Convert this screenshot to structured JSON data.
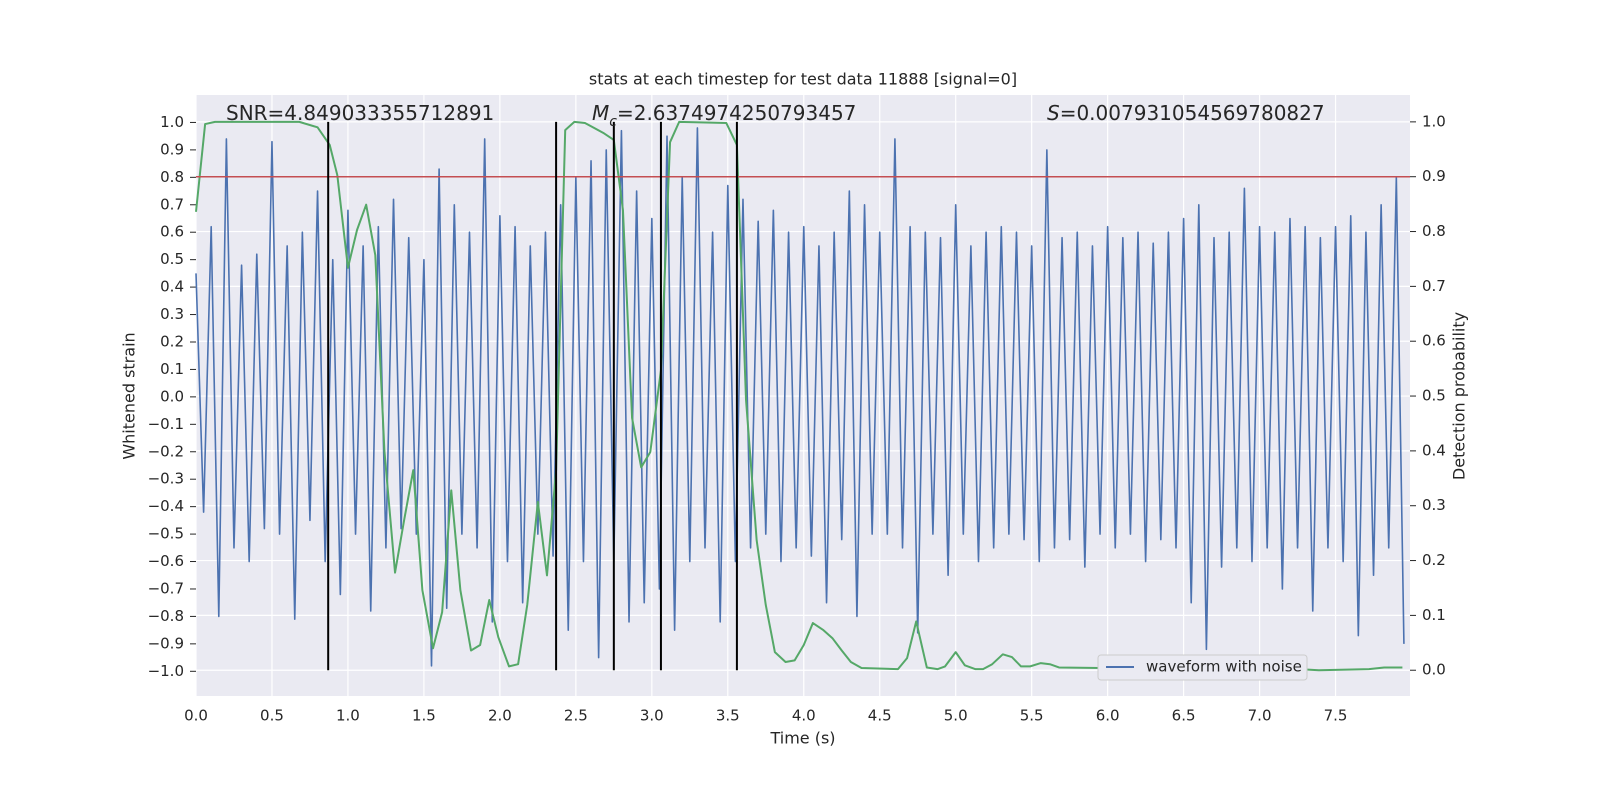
{
  "chart_data": {
    "type": "line",
    "title": "stats at each timestep for test data 11888 [signal=0]",
    "xlabel": "Time (s)",
    "ylabel": "Whitened strain",
    "y2label": "Detection probability",
    "annotations": [
      {
        "text": "SNR=4.849033355712891"
      },
      {
        "symbol": "M",
        "sub": "c",
        "text": "=2.6374974250793457"
      },
      {
        "symbol": "S",
        "text": "=0.007931054569780827"
      }
    ],
    "xlim": [
      0,
      7.99
    ],
    "ylim": [
      -1.09,
      1.1
    ],
    "y2lim": [
      -0.047,
      1.049
    ],
    "xticks": [
      {
        "value": 0,
        "label": "0.0"
      },
      0.5,
      {
        "value": 1,
        "label": "1.0"
      },
      1.5,
      {
        "value": 2,
        "label": "2.0"
      },
      2.5,
      {
        "value": 3,
        "label": "3.0"
      },
      3.5,
      {
        "value": 4,
        "label": "4.0"
      },
      4.5,
      {
        "value": 5,
        "label": "5.0"
      },
      5.5,
      {
        "value": 6,
        "label": "6.0"
      },
      6.5,
      {
        "value": 7,
        "label": "7.0"
      },
      7.5
    ],
    "yticks": [
      {
        "value": -1,
        "label": "−1.0"
      },
      {
        "value": -0.9,
        "label": "−0.9"
      },
      {
        "value": -0.8,
        "label": "−0.8"
      },
      {
        "value": -0.7,
        "label": "−0.7"
      },
      {
        "value": -0.6,
        "label": "−0.6"
      },
      {
        "value": -0.5,
        "label": "−0.5"
      },
      {
        "value": -0.4,
        "label": "−0.4"
      },
      {
        "value": -0.3,
        "label": "−0.3"
      },
      {
        "value": -0.2,
        "label": "−0.2"
      },
      {
        "value": -0.1,
        "label": "−0.1"
      },
      {
        "value": 0,
        "label": "0.0"
      },
      0.1,
      0.2,
      0.3,
      0.4,
      0.5,
      0.6,
      0.7,
      0.8,
      0.9,
      {
        "value": 1,
        "label": "1.0"
      }
    ],
    "y2ticks": [
      {
        "value": 0,
        "label": "0.0"
      },
      0.1,
      0.2,
      0.3,
      0.4,
      0.5,
      0.6,
      0.7,
      0.8,
      0.9,
      {
        "value": 1,
        "label": "1.0"
      }
    ],
    "grid": "y2",
    "legend": "lower right",
    "hline": {
      "value": 0.9,
      "axis": "y2",
      "color": "#c44e52"
    },
    "vlines": {
      "x": [
        0.87,
        2.37,
        2.75,
        3.06,
        3.56
      ],
      "color": "#000000"
    },
    "series": [
      {
        "name": "waveform with noise",
        "color": "#4c72b0",
        "x": [
          0,
          0.05,
          0.1,
          0.15,
          0.2,
          0.25,
          0.3,
          0.35,
          0.4,
          0.45,
          0.5,
          0.55,
          0.6,
          0.65,
          0.7,
          0.75,
          0.8,
          0.85,
          0.9,
          0.95,
          1,
          1.05,
          1.1,
          1.15,
          1.2,
          1.25,
          1.3,
          1.35,
          1.4,
          1.45,
          1.5,
          1.55,
          1.6,
          1.65,
          1.7,
          1.75,
          1.8,
          1.85,
          1.9,
          1.95,
          2,
          2.05,
          2.1,
          2.15,
          2.2,
          2.25,
          2.3,
          2.35,
          2.4,
          2.45,
          2.5,
          2.55,
          2.6,
          2.65,
          2.7,
          2.75,
          2.8,
          2.85,
          2.9,
          2.95,
          3,
          3.05,
          3.1,
          3.15,
          3.2,
          3.25,
          3.3,
          3.35,
          3.4,
          3.45,
          3.5,
          3.55,
          3.6,
          3.65,
          3.7,
          3.75,
          3.8,
          3.85,
          3.9,
          3.95,
          4,
          4.05,
          4.1,
          4.15,
          4.2,
          4.25,
          4.3,
          4.35,
          4.4,
          4.45,
          4.5,
          4.55,
          4.6,
          4.65,
          4.7,
          4.75,
          4.8,
          4.85,
          4.9,
          4.95,
          5,
          5.05,
          5.1,
          5.15,
          5.2,
          5.25,
          5.3,
          5.35,
          5.4,
          5.45,
          5.5,
          5.55,
          5.6,
          5.65,
          5.7,
          5.75,
          5.8,
          5.85,
          5.9,
          5.95,
          6,
          6.05,
          6.1,
          6.15,
          6.2,
          6.25,
          6.3,
          6.35,
          6.4,
          6.45,
          6.5,
          6.55,
          6.6,
          6.65,
          6.7,
          6.75,
          6.8,
          6.85,
          6.9,
          6.95,
          7,
          7.05,
          7.1,
          7.15,
          7.2,
          7.25,
          7.3,
          7.35,
          7.4,
          7.45,
          7.5,
          7.55,
          7.6,
          7.65,
          7.7,
          7.75,
          7.8,
          7.85,
          7.9,
          7.95
        ],
        "values": [
          0.45,
          -0.42,
          0.62,
          -0.8,
          0.94,
          -0.55,
          0.48,
          -0.6,
          0.52,
          -0.48,
          0.93,
          -0.5,
          0.55,
          -0.81,
          0.6,
          -0.45,
          0.75,
          -0.6,
          0.5,
          -0.72,
          0.68,
          -0.5,
          0.55,
          -0.78,
          0.62,
          -0.55,
          0.72,
          -0.48,
          0.58,
          -0.5,
          0.5,
          -0.98,
          0.83,
          -0.77,
          0.7,
          -0.5,
          0.6,
          -0.55,
          0.94,
          -0.82,
          0.66,
          -0.6,
          0.62,
          -0.75,
          0.55,
          -0.5,
          0.6,
          -0.58,
          0.7,
          -0.85,
          0.8,
          -0.6,
          0.86,
          -0.95,
          0.9,
          -0.6,
          0.97,
          -0.82,
          0.75,
          -0.75,
          0.65,
          -0.7,
          0.95,
          -0.85,
          0.8,
          -0.6,
          0.98,
          -0.55,
          0.6,
          -0.82,
          0.77,
          -0.6,
          0.72,
          -0.55,
          0.64,
          -0.5,
          0.68,
          -0.6,
          0.6,
          -0.55,
          0.62,
          -0.58,
          0.55,
          -0.75,
          0.6,
          -0.52,
          0.75,
          -0.8,
          0.7,
          -0.5,
          0.6,
          -0.5,
          0.94,
          -0.55,
          0.62,
          -0.86,
          0.6,
          -0.5,
          0.58,
          -0.65,
          0.7,
          -0.5,
          0.55,
          -0.6,
          0.6,
          -0.55,
          0.62,
          -0.5,
          0.6,
          -0.52,
          0.55,
          -0.6,
          0.9,
          -0.55,
          0.58,
          -0.52,
          0.6,
          -0.62,
          0.55,
          -0.5,
          0.62,
          -0.55,
          0.58,
          -0.5,
          0.6,
          -0.6,
          0.56,
          -0.52,
          0.6,
          -0.55,
          0.65,
          -0.75,
          0.7,
          -0.92,
          0.58,
          -0.62,
          0.6,
          -0.55,
          0.76,
          -0.6,
          0.62,
          -0.55,
          0.6,
          -0.7,
          0.65,
          -0.55,
          0.62,
          -0.78,
          0.58,
          -0.55,
          0.62,
          -0.6,
          0.66,
          -0.87,
          0.6,
          -0.65,
          0.7,
          -0.55,
          0.8,
          -0.9
        ]
      },
      {
        "color": "#55a868",
        "axis": "y2",
        "x": [
          0,
          0.06,
          0.125,
          0.68,
          0.8,
          0.88,
          0.93,
          1,
          1.06,
          1.12,
          1.18,
          1.24,
          1.31,
          1.37,
          1.43,
          1.49,
          1.56,
          1.62,
          1.68,
          1.74,
          1.81,
          1.87,
          1.93,
          1.99,
          2.06,
          2.12,
          2.18,
          2.25,
          2.31,
          2.37,
          2.43,
          2.49,
          2.56,
          2.68,
          2.75,
          2.81,
          2.87,
          2.93,
          2.99,
          3.06,
          3.12,
          3.18,
          3.49,
          3.56,
          3.62,
          3.69,
          3.75,
          3.81,
          3.88,
          3.94,
          4,
          4.06,
          4.13,
          4.19,
          4.25,
          4.31,
          4.38,
          4.62,
          4.68,
          4.74,
          4.81,
          4.88,
          4.93,
          5,
          5.06,
          5.13,
          5.18,
          5.24,
          5.31,
          5.37,
          5.43,
          5.49,
          5.56,
          5.62,
          5.68,
          5.95,
          6.6,
          6.68,
          6.75,
          6.81,
          6.87,
          7.06,
          7.13,
          7.39,
          7.72,
          7.82,
          7.94
        ],
        "values": [
          0.836,
          0.996,
          1.0,
          1.0,
          0.99,
          0.958,
          0.903,
          0.734,
          0.803,
          0.849,
          0.757,
          0.4,
          0.178,
          0.274,
          0.365,
          0.146,
          0.04,
          0.106,
          0.328,
          0.146,
          0.036,
          0.046,
          0.128,
          0.06,
          0.007,
          0.011,
          0.119,
          0.307,
          0.173,
          0.365,
          0.985,
          1.0,
          0.998,
          0.98,
          0.967,
          0.839,
          0.46,
          0.37,
          0.398,
          0.547,
          0.963,
          1.0,
          0.998,
          0.958,
          0.493,
          0.237,
          0.119,
          0.033,
          0.015,
          0.018,
          0.046,
          0.086,
          0.073,
          0.058,
          0.036,
          0.015,
          0.004,
          0.002,
          0.022,
          0.089,
          0.005,
          0.002,
          0.007,
          0.033,
          0.009,
          0.002,
          0.002,
          0.011,
          0.029,
          0.024,
          0.007,
          0.007,
          0.013,
          0.011,
          0.005,
          0.004,
          0.004,
          0.009,
          0.022,
          0.016,
          0.005,
          0.009,
          0.004,
          0.0,
          0.002,
          0.005,
          0.005
        ]
      }
    ]
  }
}
